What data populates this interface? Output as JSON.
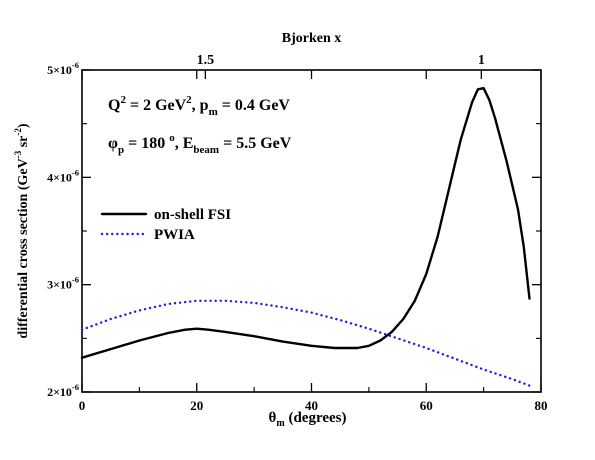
{
  "chart_data": {
    "type": "line",
    "xlabel": "θm (degrees)",
    "xlabel_main": "θ",
    "xlabel_sub": "m",
    "xlabel_rest": " (degrees)",
    "ylabel": "differential cross section (GeV-3 sr-2)",
    "ylabel_main": "differential cross section (GeV",
    "ylabel_sup1": "-3",
    "ylabel_mid": " sr",
    "ylabel_sup2": "-2",
    "ylabel_end": ")",
    "top_axis_label": "Bjorken x",
    "xlim": [
      0,
      80
    ],
    "ylim": [
      2e-06,
      5e-06
    ],
    "x_ticks": [
      {
        "value": 0,
        "label": "0"
      },
      {
        "value": 20,
        "label": "20"
      },
      {
        "value": 40,
        "label": "40"
      },
      {
        "value": 60,
        "label": "60"
      },
      {
        "value": 80,
        "label": "80"
      }
    ],
    "y_ticks": [
      {
        "value": 2e-06,
        "mant": "2×10",
        "exp": "-6"
      },
      {
        "value": 3e-06,
        "mant": "3×10",
        "exp": "-6"
      },
      {
        "value": 4e-06,
        "mant": "4×10",
        "exp": "-6"
      },
      {
        "value": 5e-06,
        "mant": "5×10",
        "exp": "-6"
      }
    ],
    "top_ticks": [
      {
        "theta": 21.5,
        "label": "1.5"
      },
      {
        "theta": 69.6,
        "label": "1"
      }
    ],
    "annotations": {
      "line1": {
        "parts": [
          {
            "t": "Q",
            "s": "n"
          },
          {
            "t": "2",
            "s": "sup"
          },
          {
            "t": " = 2 GeV",
            "s": "n"
          },
          {
            "t": "2",
            "s": "sup"
          },
          {
            "t": ", p",
            "s": "n"
          },
          {
            "t": "m",
            "s": "sub"
          },
          {
            "t": " = 0.4 GeV",
            "s": "n"
          }
        ]
      },
      "line2": {
        "parts": [
          {
            "t": "φ",
            "s": "n"
          },
          {
            "t": "p",
            "s": "sub"
          },
          {
            "t": " = 180 ",
            "s": "n"
          },
          {
            "t": "o",
            "s": "sup"
          },
          {
            "t": ", E",
            "s": "n"
          },
          {
            "t": "beam",
            "s": "sub"
          },
          {
            "t": " = 5.5 GeV",
            "s": "n"
          }
        ]
      }
    },
    "legend_position": "left",
    "series": [
      {
        "name": "on-shell FSI",
        "color": "#000000",
        "style": "solid",
        "x": [
          0,
          5,
          10,
          15,
          18,
          20,
          22,
          25,
          30,
          35,
          40,
          44,
          48,
          50,
          52,
          54,
          56,
          58,
          60,
          62,
          64,
          66,
          68,
          69,
          70,
          71,
          72,
          74,
          76,
          77,
          78
        ],
        "y": [
          2.32e-06,
          2.4e-06,
          2.48e-06,
          2.55e-06,
          2.58e-06,
          2.59e-06,
          2.58e-06,
          2.56e-06,
          2.52e-06,
          2.47e-06,
          2.43e-06,
          2.41e-06,
          2.41e-06,
          2.43e-06,
          2.48e-06,
          2.56e-06,
          2.68e-06,
          2.85e-06,
          3.1e-06,
          3.45e-06,
          3.9e-06,
          4.35e-06,
          4.7e-06,
          4.82e-06,
          4.83e-06,
          4.72e-06,
          4.55e-06,
          4.15e-06,
          3.7e-06,
          3.35e-06,
          2.87e-06
        ]
      },
      {
        "name": "PWIA",
        "color": "#1f1fe0",
        "style": "dotted",
        "x": [
          0,
          5,
          10,
          15,
          20,
          25,
          30,
          35,
          40,
          45,
          50,
          55,
          60,
          65,
          70,
          75,
          78
        ],
        "y": [
          2.58e-06,
          2.68e-06,
          2.76e-06,
          2.82e-06,
          2.85e-06,
          2.85e-06,
          2.83e-06,
          2.79e-06,
          2.74e-06,
          2.67e-06,
          2.59e-06,
          2.5e-06,
          2.41e-06,
          2.31e-06,
          2.21e-06,
          2.12e-06,
          2.06e-06
        ]
      }
    ]
  }
}
